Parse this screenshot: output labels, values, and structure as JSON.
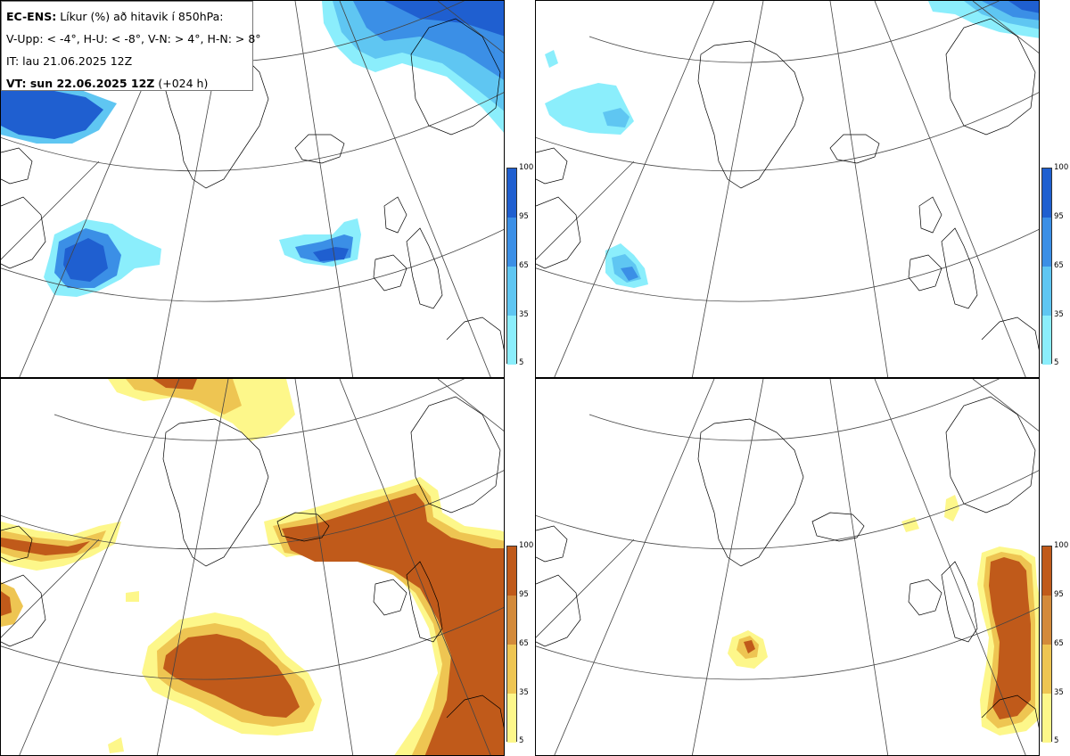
{
  "header": {
    "model_label": "EC-ENS:",
    "title_rest": "Líkur (%) að hitavik í 850hPa:",
    "legend_line": "V-Upp: < -4°, H-U: < -8°, V-N: > 4°, H-N: > 8°",
    "init_time": "IT: lau 21.06.2025 12Z",
    "valid_time_label": "VT: sun 22.06.2025 12Z",
    "lead_time": "(+024 h)"
  },
  "colorbars": {
    "cold": {
      "ticks": [
        "100",
        "95",
        "65",
        "35",
        "5"
      ],
      "colors": [
        "#1f5fd0",
        "#3b8fe6",
        "#5fc6f2",
        "#8beefc"
      ]
    },
    "warm": {
      "ticks": [
        "100",
        "95",
        "65",
        "35",
        "5"
      ],
      "colors": [
        "#c05a1a",
        "#d38a3a",
        "#eec552",
        "#fdf78a"
      ]
    }
  },
  "panels": [
    {
      "name": "V-Upp",
      "field": "cold"
    },
    {
      "name": "H-U",
      "field": "cold"
    },
    {
      "name": "V-N",
      "field": "warm"
    },
    {
      "name": "H-N",
      "field": "warm"
    }
  ]
}
